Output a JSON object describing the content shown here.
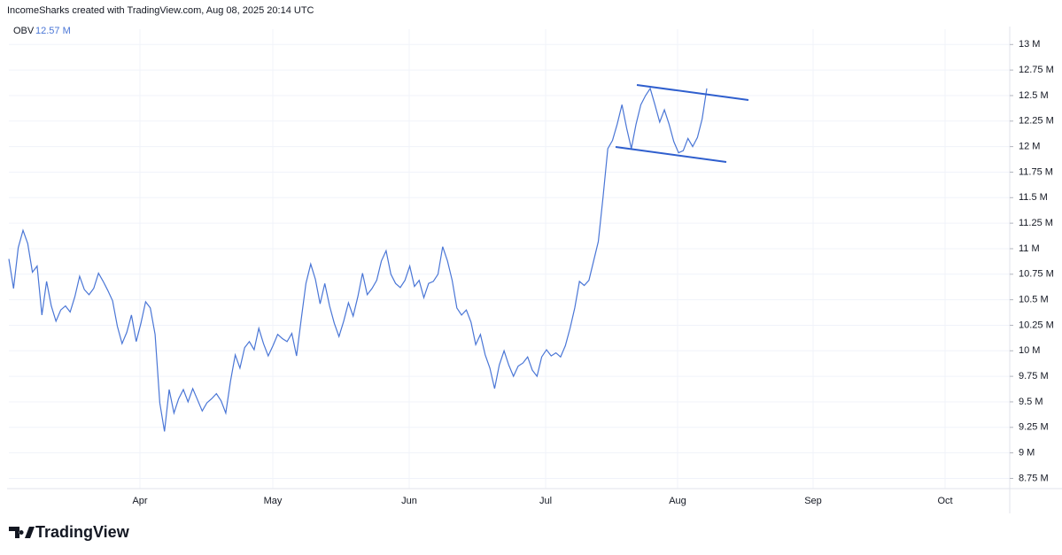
{
  "header": "IncomeSharks created with TradingView.com, Aug 08, 2025 20:14 UTC",
  "brand": "TradingView",
  "chart_data": {
    "type": "line",
    "series": [
      {
        "name": "OBV",
        "color": "#4a76d6",
        "current_value_label": "12.57 M",
        "values": [
          10.9,
          10.61,
          11.01,
          11.18,
          11.05,
          10.77,
          10.83,
          10.35,
          10.68,
          10.44,
          10.29,
          10.4,
          10.44,
          10.38,
          10.53,
          10.73,
          10.6,
          10.55,
          10.61,
          10.76,
          10.68,
          10.59,
          10.49,
          10.24,
          10.07,
          10.18,
          10.35,
          10.09,
          10.27,
          10.48,
          10.42,
          10.16,
          9.49,
          9.21,
          9.62,
          9.39,
          9.53,
          9.62,
          9.5,
          9.63,
          9.52,
          9.41,
          9.49,
          9.53,
          9.58,
          9.51,
          9.39,
          9.7,
          9.96,
          9.83,
          10.03,
          10.09,
          10.01,
          10.22,
          10.07,
          9.95,
          10.05,
          10.16,
          10.12,
          10.09,
          10.17,
          9.95,
          10.31,
          10.66,
          10.85,
          10.7,
          10.46,
          10.66,
          10.44,
          10.27,
          10.14,
          10.29,
          10.47,
          10.34,
          10.53,
          10.76,
          10.55,
          10.61,
          10.69,
          10.88,
          10.98,
          10.75,
          10.66,
          10.62,
          10.69,
          10.83,
          10.63,
          10.69,
          10.52,
          10.66,
          10.68,
          10.75,
          11.02,
          10.88,
          10.69,
          10.42,
          10.35,
          10.4,
          10.28,
          10.06,
          10.16,
          9.96,
          9.83,
          9.63,
          9.86,
          10.0,
          9.86,
          9.75,
          9.85,
          9.88,
          9.94,
          9.81,
          9.75,
          9.94,
          10.01,
          9.95,
          9.98,
          9.94,
          10.05,
          10.22,
          10.42,
          10.68,
          10.64,
          10.69,
          10.88,
          11.07,
          11.51,
          11.98,
          12.06,
          12.22,
          12.41,
          12.18,
          11.98,
          12.22,
          12.41,
          12.5,
          12.57,
          12.41,
          12.24,
          12.36,
          12.22,
          12.05,
          11.94,
          11.96,
          12.08,
          12.0,
          12.09,
          12.27,
          12.57
        ]
      }
    ],
    "x_axis_labels": [
      "Apr",
      "May",
      "Jun",
      "Jul",
      "Aug",
      "Sep",
      "Oct"
    ],
    "ylim": [
      8.65,
      13.15
    ],
    "yticks": [
      {
        "value": 8.75,
        "label": "8.75 M"
      },
      {
        "value": 9,
        "label": "9 M"
      },
      {
        "value": 9.25,
        "label": "9.25 M"
      },
      {
        "value": 9.5,
        "label": "9.5 M"
      },
      {
        "value": 9.75,
        "label": "9.75 M"
      },
      {
        "value": 10,
        "label": "10 M"
      },
      {
        "value": 10.25,
        "label": "10.25 M"
      },
      {
        "value": 10.5,
        "label": "10.5 M"
      },
      {
        "value": 10.75,
        "label": "10.75 M"
      },
      {
        "value": 11,
        "label": "11 M"
      },
      {
        "value": 11.25,
        "label": "11.25 M"
      },
      {
        "value": 11.5,
        "label": "11.5 M"
      },
      {
        "value": 11.75,
        "label": "11.75 M"
      },
      {
        "value": 12,
        "label": "12 M"
      },
      {
        "value": 12.25,
        "label": "12.25 M"
      },
      {
        "value": 12.5,
        "label": "12.5 M"
      },
      {
        "value": 12.75,
        "label": "12.75 M"
      },
      {
        "value": 13,
        "label": "13 M"
      }
    ],
    "grid": true
  }
}
